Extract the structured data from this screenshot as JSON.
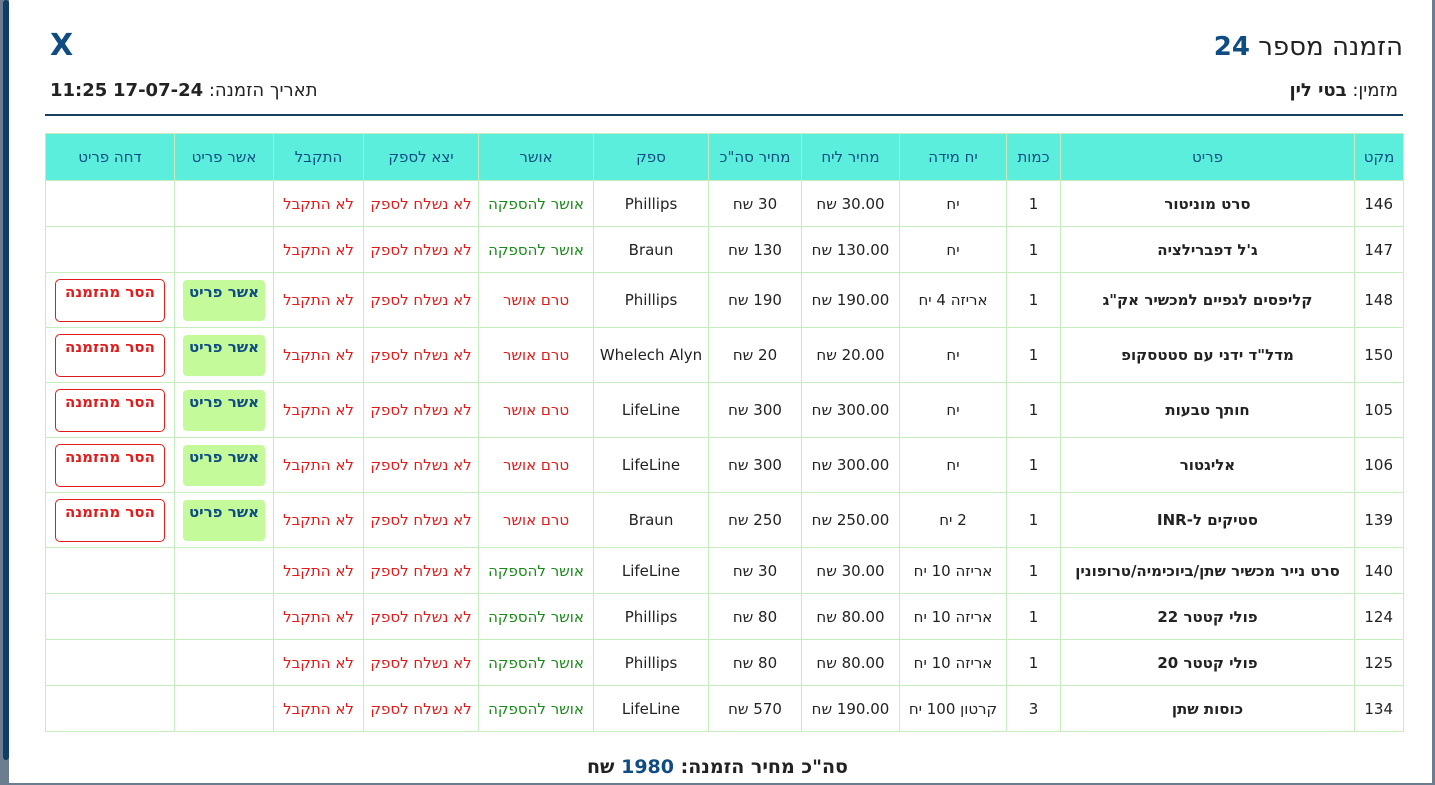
{
  "header": {
    "title": "הזמנה מספר",
    "order_number": "24",
    "close_label": "X",
    "orderer_label": "מזמין:",
    "orderer_name": "בטי לין",
    "date_label": "תאריך הזמנה:",
    "date_value": "17-07-24",
    "time_value": "11:25"
  },
  "table": {
    "columns": [
      "מקט",
      "פריט",
      "כמות",
      "יח מידה",
      "מחיר ליח",
      "מחיר סה\"כ",
      "ספק",
      "אושר",
      "יצא לספק",
      "התקבל",
      "אשר פריט",
      "דחה פריט"
    ],
    "rows": [
      {
        "sku": "146",
        "item": "סרט מוניטור",
        "qty": "1",
        "unit": "יח",
        "unit_price": "30.00 שח",
        "total_price": "30 שח",
        "supplier": "Phillips",
        "approved": "אושר להספקה",
        "approved_state": "approved",
        "sent": "לא נשלח לספק",
        "received": "לא התקבל",
        "approve_label": "",
        "reject_label": ""
      },
      {
        "sku": "147",
        "item": "ג'ל דפברילציה",
        "qty": "1",
        "unit": "יח",
        "unit_price": "130.00 שח",
        "total_price": "130 שח",
        "supplier": "Braun",
        "approved": "אושר להספקה",
        "approved_state": "approved",
        "sent": "לא נשלח לספק",
        "received": "לא התקבל",
        "approve_label": "",
        "reject_label": ""
      },
      {
        "sku": "148",
        "item": "קליפסים לגפיים למכשיר אק\"ג",
        "qty": "1",
        "unit": "אריזה 4 יח",
        "unit_price": "190.00 שח",
        "total_price": "190 שח",
        "supplier": "Phillips",
        "approved": "טרם אושר",
        "approved_state": "pending",
        "sent": "לא נשלח לספק",
        "received": "לא התקבל",
        "approve_label": "אשר פריט",
        "reject_label": "הסר מהזמנה"
      },
      {
        "sku": "150",
        "item": "מדל\"ד ידני עם סטטסקופ",
        "qty": "1",
        "unit": "יח",
        "unit_price": "20.00 שח",
        "total_price": "20 שח",
        "supplier": "Whelech Alyn",
        "approved": "טרם אושר",
        "approved_state": "pending",
        "sent": "לא נשלח לספק",
        "received": "לא התקבל",
        "approve_label": "אשר פריט",
        "reject_label": "הסר מהזמנה"
      },
      {
        "sku": "105",
        "item": "חותך טבעות",
        "qty": "1",
        "unit": "יח",
        "unit_price": "300.00 שח",
        "total_price": "300 שח",
        "supplier": "LifeLine",
        "approved": "טרם אושר",
        "approved_state": "pending",
        "sent": "לא נשלח לספק",
        "received": "לא התקבל",
        "approve_label": "אשר פריט",
        "reject_label": "הסר מהזמנה"
      },
      {
        "sku": "106",
        "item": "אליגטור",
        "qty": "1",
        "unit": "יח",
        "unit_price": "300.00 שח",
        "total_price": "300 שח",
        "supplier": "LifeLine",
        "approved": "טרם אושר",
        "approved_state": "pending",
        "sent": "לא נשלח לספק",
        "received": "לא התקבל",
        "approve_label": "אשר פריט",
        "reject_label": "הסר מהזמנה"
      },
      {
        "sku": "139",
        "item": "סטיקים ל-INR",
        "qty": "1",
        "unit": "2 יח",
        "unit_price": "250.00 שח",
        "total_price": "250 שח",
        "supplier": "Braun",
        "approved": "טרם אושר",
        "approved_state": "pending",
        "sent": "לא נשלח לספק",
        "received": "לא התקבל",
        "approve_label": "אשר פריט",
        "reject_label": "הסר מהזמנה"
      },
      {
        "sku": "140",
        "item": "סרט נייר מכשיר שתן/ביוכימיה/טרופונין",
        "qty": "1",
        "unit": "אריזה 10 יח",
        "unit_price": "30.00 שח",
        "total_price": "30 שח",
        "supplier": "LifeLine",
        "approved": "אושר להספקה",
        "approved_state": "approved",
        "sent": "לא נשלח לספק",
        "received": "לא התקבל",
        "approve_label": "",
        "reject_label": ""
      },
      {
        "sku": "124",
        "item": "פולי קטטר 22",
        "qty": "1",
        "unit": "אריזה 10 יח",
        "unit_price": "80.00 שח",
        "total_price": "80 שח",
        "supplier": "Phillips",
        "approved": "אושר להספקה",
        "approved_state": "approved",
        "sent": "לא נשלח לספק",
        "received": "לא התקבל",
        "approve_label": "",
        "reject_label": ""
      },
      {
        "sku": "125",
        "item": "פולי קטטר 20",
        "qty": "1",
        "unit": "אריזה 10 יח",
        "unit_price": "80.00 שח",
        "total_price": "80 שח",
        "supplier": "Phillips",
        "approved": "אושר להספקה",
        "approved_state": "approved",
        "sent": "לא נשלח לספק",
        "received": "לא התקבל",
        "approve_label": "",
        "reject_label": ""
      },
      {
        "sku": "134",
        "item": "כוסות שתן",
        "qty": "3",
        "unit": "קרטון 100 יח",
        "unit_price": "190.00 שח",
        "total_price": "570 שח",
        "supplier": "LifeLine",
        "approved": "אושר להספקה",
        "approved_state": "approved",
        "sent": "לא נשלח לספק",
        "received": "לא התקבל",
        "approve_label": "",
        "reject_label": ""
      }
    ]
  },
  "footer": {
    "total_label": "סה\"כ מחיר הזמנה:",
    "total_amount": "1980",
    "currency": "שח"
  },
  "colors": {
    "header_bg": "#5ceedd",
    "accent": "#0f4c81",
    "approved_text": "#1a8a1a",
    "pending_text": "#e01b1b",
    "approve_button_bg": "#c5fa9b"
  }
}
